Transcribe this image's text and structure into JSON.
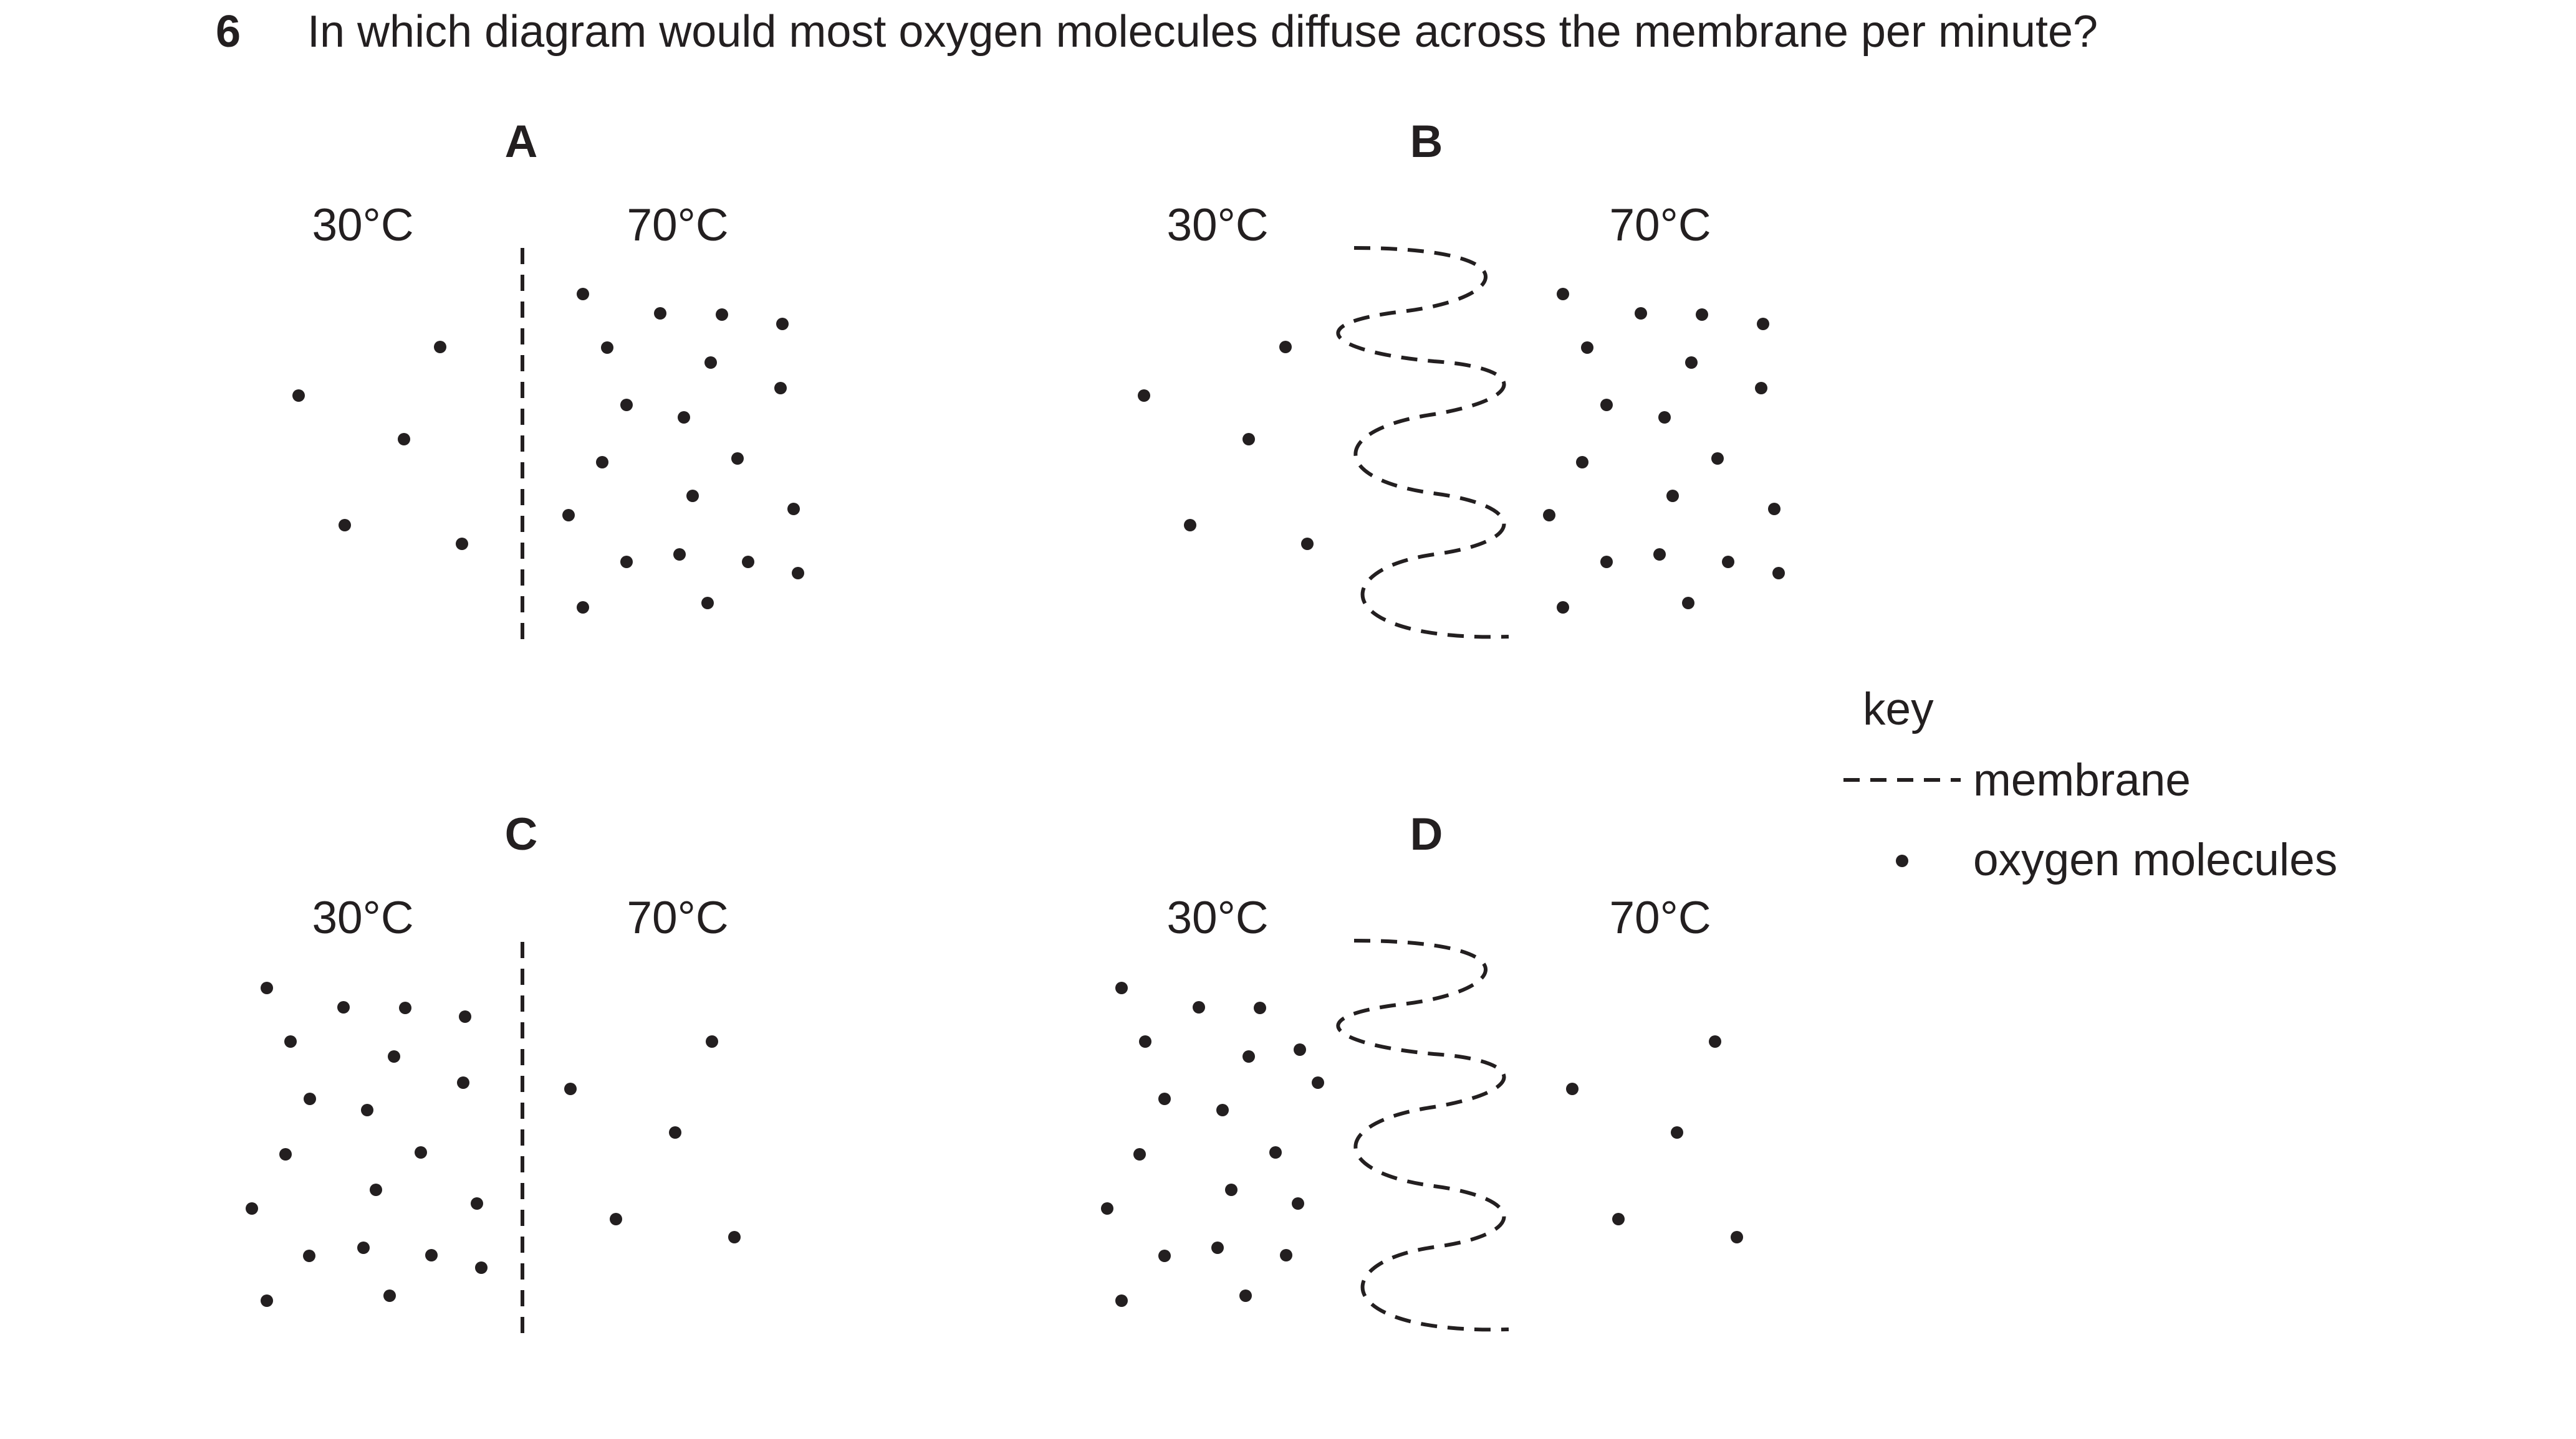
{
  "question": {
    "number": "6",
    "text": "In which diagram would most oxygen molecules diffuse across the membrane per minute?"
  },
  "panels": [
    {
      "letter": "A",
      "left_temp": "30°C",
      "right_temp": "70°C",
      "membrane": "straight",
      "left_molecules": 6,
      "right_molecules": 22
    },
    {
      "letter": "B",
      "left_temp": "30°C",
      "right_temp": "70°C",
      "membrane": "folded",
      "left_molecules": 6,
      "right_molecules": 22
    },
    {
      "letter": "C",
      "left_temp": "30°C",
      "right_temp": "70°C",
      "membrane": "straight",
      "left_molecules": 22,
      "right_molecules": 6
    },
    {
      "letter": "D",
      "left_temp": "30°C",
      "right_temp": "70°C",
      "membrane": "folded",
      "left_molecules": 22,
      "right_molecules": 6
    }
  ],
  "key": {
    "title": "key",
    "membrane_label": "membrane",
    "molecule_label": "oxygen molecules"
  },
  "colors": {
    "ink": "#231f20"
  }
}
